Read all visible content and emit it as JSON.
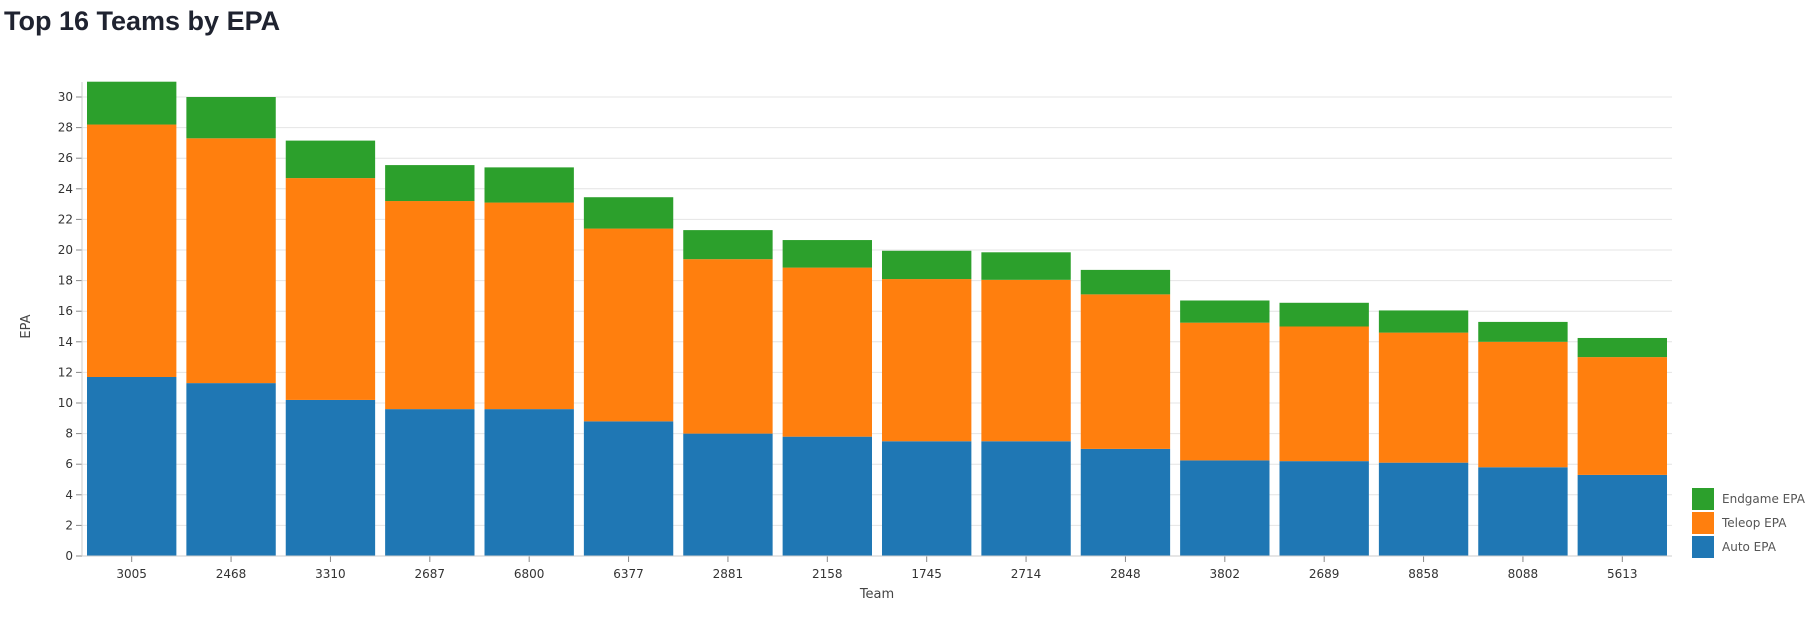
{
  "chart_data": {
    "type": "bar",
    "stacked": true,
    "title": "Top 16 Teams by EPA",
    "xlabel": "Team",
    "ylabel": "EPA",
    "ylim": [
      0,
      31
    ],
    "yticks": [
      0,
      2,
      4,
      6,
      8,
      10,
      12,
      14,
      16,
      18,
      20,
      22,
      24,
      26,
      28,
      30
    ],
    "grid": true,
    "legend_position": "bottom-right",
    "categories": [
      "3005",
      "2468",
      "3310",
      "2687",
      "6800",
      "6377",
      "2881",
      "2158",
      "1745",
      "2714",
      "2848",
      "3802",
      "2689",
      "8858",
      "8088",
      "5613"
    ],
    "series": [
      {
        "name": "Auto EPA",
        "color": "#1f77b4",
        "values": [
          11.7,
          11.3,
          10.2,
          9.6,
          9.6,
          8.8,
          8.0,
          7.8,
          7.5,
          7.5,
          7.0,
          6.25,
          6.2,
          6.1,
          5.8,
          5.3
        ]
      },
      {
        "name": "Teleop EPA",
        "color": "#ff7f0e",
        "values": [
          16.5,
          16.0,
          14.5,
          13.6,
          13.5,
          12.6,
          11.4,
          11.05,
          10.6,
          10.55,
          10.1,
          9.0,
          8.8,
          8.5,
          8.2,
          7.7
        ]
      },
      {
        "name": "Endgame EPA",
        "color": "#2ca02c",
        "values": [
          2.8,
          2.7,
          2.45,
          2.35,
          2.3,
          2.05,
          1.9,
          1.8,
          1.85,
          1.8,
          1.6,
          1.45,
          1.55,
          1.45,
          1.3,
          1.25
        ]
      }
    ],
    "legend_order": [
      "Endgame EPA",
      "Teleop EPA",
      "Auto EPA"
    ]
  }
}
